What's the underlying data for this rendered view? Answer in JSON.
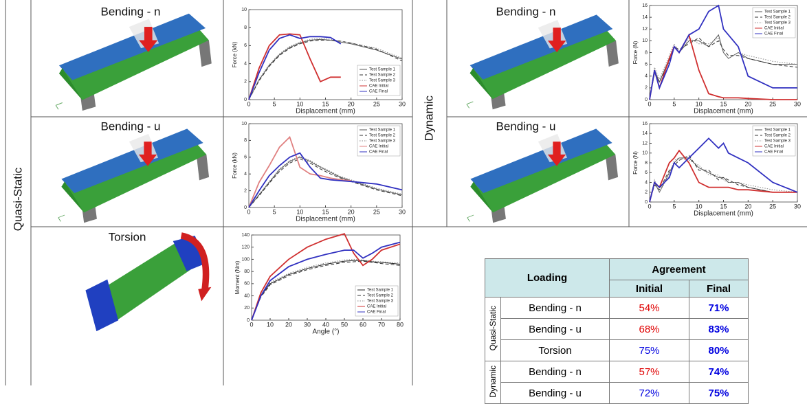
{
  "labels": {
    "quasi_static": "Quasi-Static",
    "dynamic": "Dynamic"
  },
  "panels": [
    {
      "title": "Bending - n"
    },
    {
      "title": "Bending - u"
    },
    {
      "title": "Torsion"
    },
    {
      "title": "Bending - n"
    },
    {
      "title": "Bending - u"
    }
  ],
  "chart_data": [
    {
      "type": "line",
      "xlabel": "Displacement (mm)",
      "ylabel": "Force (kN)",
      "legend": "lower right",
      "x": [
        0,
        2,
        4,
        6,
        8,
        10,
        12,
        14,
        16,
        18,
        20,
        25,
        30
      ],
      "xlim": [
        0,
        30
      ],
      "xticks": [
        0,
        5,
        10,
        15,
        20,
        25,
        30
      ],
      "ylim": [
        0,
        10
      ],
      "yticks": [
        0,
        2,
        4,
        6,
        8,
        10
      ],
      "series": [
        {
          "name": "Test Sample 1",
          "color": "#555555",
          "dash": "solid",
          "values": [
            0,
            2.2,
            3.8,
            5,
            5.8,
            6.3,
            6.6,
            6.7,
            6.6,
            6.4,
            6.2,
            5.5,
            4.5
          ]
        },
        {
          "name": "Test Sample 2",
          "color": "#333333",
          "dash": "dashed",
          "values": [
            0,
            2.1,
            3.7,
            4.9,
            5.7,
            6.2,
            6.5,
            6.6,
            6.6,
            6.5,
            6.3,
            5.6,
            4.3
          ]
        },
        {
          "name": "Test Sample 3",
          "color": "#888888",
          "dash": "dotted",
          "values": [
            0,
            2.3,
            3.9,
            5.1,
            5.9,
            6.4,
            6.7,
            6.8,
            6.7,
            6.5,
            6.3,
            5.7,
            4.6
          ]
        },
        {
          "name": "CAE Initial",
          "color": "#d03030",
          "dash": "solid",
          "values": [
            0,
            3.5,
            6,
            7.2,
            7.3,
            7.2,
            4.5,
            2,
            2.5,
            2.5,
            null,
            null,
            null
          ]
        },
        {
          "name": "CAE Final",
          "color": "#3030c0",
          "dash": "solid",
          "values": [
            0,
            3,
            5.5,
            6.8,
            7.2,
            6.8,
            7,
            7,
            6.9,
            6.2,
            null,
            null,
            null
          ]
        }
      ]
    },
    {
      "type": "line",
      "xlabel": "Displacement (mm)",
      "ylabel": "Force (kN)",
      "legend": "upper right",
      "x": [
        0,
        2,
        4,
        6,
        8,
        10,
        12,
        14,
        16,
        18,
        20,
        25,
        30
      ],
      "xlim": [
        0,
        30
      ],
      "xticks": [
        0,
        5,
        10,
        15,
        20,
        25,
        30
      ],
      "ylim": [
        0,
        10
      ],
      "yticks": [
        0,
        2,
        4,
        6,
        8,
        10
      ],
      "series": [
        {
          "name": "Test Sample 1",
          "color": "#555555",
          "dash": "solid",
          "values": [
            0,
            1.5,
            3,
            4.5,
            5.5,
            6,
            5.5,
            4.8,
            4.2,
            3.6,
            3.2,
            2.2,
            1.5
          ]
        },
        {
          "name": "Test Sample 2",
          "color": "#333333",
          "dash": "dashed",
          "values": [
            0,
            1.4,
            2.9,
            4.3,
            5.3,
            5.8,
            5.3,
            4.6,
            4,
            3.5,
            3.1,
            2.1,
            1.4
          ]
        },
        {
          "name": "Test Sample 3",
          "color": "#888888",
          "dash": "dotted",
          "values": [
            0,
            1.6,
            3.1,
            4.6,
            5.6,
            6.1,
            5.6,
            4.9,
            4.3,
            3.7,
            3.3,
            2.3,
            1.6
          ]
        },
        {
          "name": "CAE Initial",
          "color": "#e08080",
          "dash": "solid",
          "values": [
            0,
            3,
            5,
            7.2,
            8.4,
            4.8,
            4,
            3.8,
            3.5,
            3.3,
            3.2,
            null,
            null
          ]
        },
        {
          "name": "CAE Final",
          "color": "#3030c0",
          "dash": "solid",
          "values": [
            0,
            2,
            3.8,
            5,
            6,
            6.5,
            4.8,
            3.5,
            3.3,
            3.2,
            3.1,
            2.8,
            2.1
          ]
        }
      ]
    },
    {
      "type": "line",
      "xlabel": "Angle (°)",
      "ylabel": "Moment (Nm)",
      "legend": "lower right",
      "x": [
        0,
        5,
        10,
        20,
        30,
        40,
        50,
        55,
        60,
        65,
        70,
        80
      ],
      "xlim": [
        0,
        80
      ],
      "xticks": [
        0,
        10,
        20,
        30,
        40,
        50,
        60,
        70,
        80
      ],
      "ylim": [
        0,
        140
      ],
      "yticks": [
        0,
        20,
        40,
        60,
        80,
        100,
        120,
        140
      ],
      "series": [
        {
          "name": "Test Sample 1",
          "color": "#222222",
          "dash": "solid",
          "values": [
            0,
            40,
            60,
            75,
            85,
            92,
            97,
            98,
            98,
            96,
            95,
            92
          ]
        },
        {
          "name": "Test Sample 2",
          "color": "#333333",
          "dash": "dashed",
          "values": [
            0,
            38,
            58,
            73,
            83,
            90,
            95,
            96,
            97,
            95,
            93,
            90
          ]
        },
        {
          "name": "Test Sample 3",
          "color": "#888888",
          "dash": "dotted",
          "values": [
            0,
            42,
            62,
            77,
            87,
            94,
            99,
            100,
            99,
            97,
            96,
            94
          ]
        },
        {
          "name": "CAE Initial",
          "color": "#d03030",
          "dash": "solid",
          "values": [
            0,
            45,
            72,
            100,
            120,
            133,
            142,
            110,
            90,
            100,
            115,
            125
          ]
        },
        {
          "name": "CAE Final",
          "color": "#3030c0",
          "dash": "solid",
          "values": [
            0,
            40,
            65,
            88,
            100,
            108,
            115,
            115,
            102,
            110,
            120,
            128
          ]
        }
      ]
    },
    {
      "type": "line",
      "xlabel": "Displacement (mm)",
      "ylabel": "Force (N)",
      "legend": "upper right",
      "x": [
        0,
        1,
        2,
        4,
        5,
        6,
        8,
        10,
        12,
        14,
        15,
        16,
        18,
        20,
        25,
        30
      ],
      "xlim": [
        0,
        30
      ],
      "xticks": [
        0,
        5,
        10,
        15,
        20,
        25,
        30
      ],
      "ylim": [
        0,
        16
      ],
      "yticks": [
        0,
        2,
        4,
        6,
        8,
        10,
        12,
        14,
        16
      ],
      "series": [
        {
          "name": "Test Sample 1",
          "color": "#555555",
          "dash": "solid",
          "values": [
            0,
            5,
            3,
            7,
            9,
            8,
            10,
            10,
            9,
            11,
            8,
            7,
            8,
            7,
            6,
            6
          ]
        },
        {
          "name": "Test Sample 2",
          "color": "#333333",
          "dash": "dashed",
          "values": [
            0,
            4.5,
            3,
            6.5,
            9,
            8.5,
            9.5,
            10.5,
            9,
            10,
            8.5,
            7.5,
            7.5,
            7,
            6,
            5.5
          ]
        },
        {
          "name": "Test Sample 3",
          "color": "#888888",
          "dash": "dotted",
          "values": [
            0,
            5.5,
            3.5,
            7.5,
            9.5,
            8,
            10.5,
            9.5,
            9.5,
            10.5,
            8,
            7,
            8,
            7.5,
            6.5,
            6
          ]
        },
        {
          "name": "CAE Initial",
          "color": "#d03030",
          "dash": "solid",
          "values": [
            0,
            5,
            2,
            7,
            9,
            8,
            11,
            5,
            1,
            0.5,
            0.3,
            0.3,
            0.3,
            0.2,
            0,
            0
          ]
        },
        {
          "name": "CAE Final",
          "color": "#3030c0",
          "dash": "solid",
          "values": [
            0,
            5,
            2,
            6,
            9,
            8,
            11,
            12,
            15,
            16,
            12,
            11,
            9,
            4,
            2,
            2
          ]
        }
      ]
    },
    {
      "type": "line",
      "xlabel": "Displacement (mm)",
      "ylabel": "Force (N)",
      "legend": "upper right",
      "x": [
        0,
        1,
        2,
        4,
        5,
        6,
        8,
        10,
        12,
        14,
        15,
        16,
        18,
        20,
        25,
        30
      ],
      "xlim": [
        0,
        30
      ],
      "xticks": [
        0,
        5,
        10,
        15,
        20,
        25,
        30
      ],
      "ylim": [
        0,
        16
      ],
      "yticks": [
        0,
        2,
        4,
        6,
        8,
        10,
        12,
        14,
        16
      ],
      "series": [
        {
          "name": "Test Sample 1",
          "color": "#555555",
          "dash": "solid",
          "values": [
            0,
            4,
            2,
            6,
            8,
            9,
            9,
            7,
            6,
            5,
            5,
            4,
            4,
            3,
            2,
            2
          ]
        },
        {
          "name": "Test Sample 2",
          "color": "#333333",
          "dash": "dashed",
          "values": [
            0,
            3.5,
            2.5,
            6.5,
            7.5,
            8.5,
            9.5,
            6.5,
            6.5,
            4.5,
            5,
            4.5,
            3.5,
            3,
            2,
            2
          ]
        },
        {
          "name": "Test Sample 3",
          "color": "#888888",
          "dash": "dotted",
          "values": [
            0,
            4.5,
            2,
            5.5,
            8.5,
            9,
            8.5,
            7.5,
            5.5,
            5.5,
            4.5,
            4,
            4,
            3.5,
            2.5,
            2
          ]
        },
        {
          "name": "CAE Initial",
          "color": "#d03030",
          "dash": "solid",
          "values": [
            0,
            4,
            3,
            8,
            9,
            10.5,
            8,
            4,
            3,
            3,
            3,
            3,
            2.5,
            2.5,
            2,
            2
          ]
        },
        {
          "name": "CAE Final",
          "color": "#3030c0",
          "dash": "solid",
          "values": [
            0,
            4,
            3,
            5,
            8,
            7,
            9,
            11,
            13,
            11,
            12,
            10,
            9,
            8,
            4,
            2
          ]
        }
      ]
    }
  ],
  "table": {
    "header": {
      "loading": "Loading",
      "agreement": "Agreement",
      "initial": "Initial",
      "final": "Final"
    },
    "groups": [
      {
        "name": "Quasi-Static",
        "rows": [
          {
            "loading": "Bending - n",
            "initial": "54%",
            "final": "71%",
            "initial_color": "#e00000"
          },
          {
            "loading": "Bending - u",
            "initial": "68%",
            "final": "83%",
            "initial_color": "#e00000"
          },
          {
            "loading": "Torsion",
            "initial": "75%",
            "final": "80%",
            "initial_color": "#0000e0"
          }
        ]
      },
      {
        "name": "Dynamic",
        "rows": [
          {
            "loading": "Bending - n",
            "initial": "57%",
            "final": "74%",
            "initial_color": "#e00000"
          },
          {
            "loading": "Bending - u",
            "initial": "72%",
            "final": "75%",
            "initial_color": "#0000e0"
          }
        ]
      }
    ]
  }
}
